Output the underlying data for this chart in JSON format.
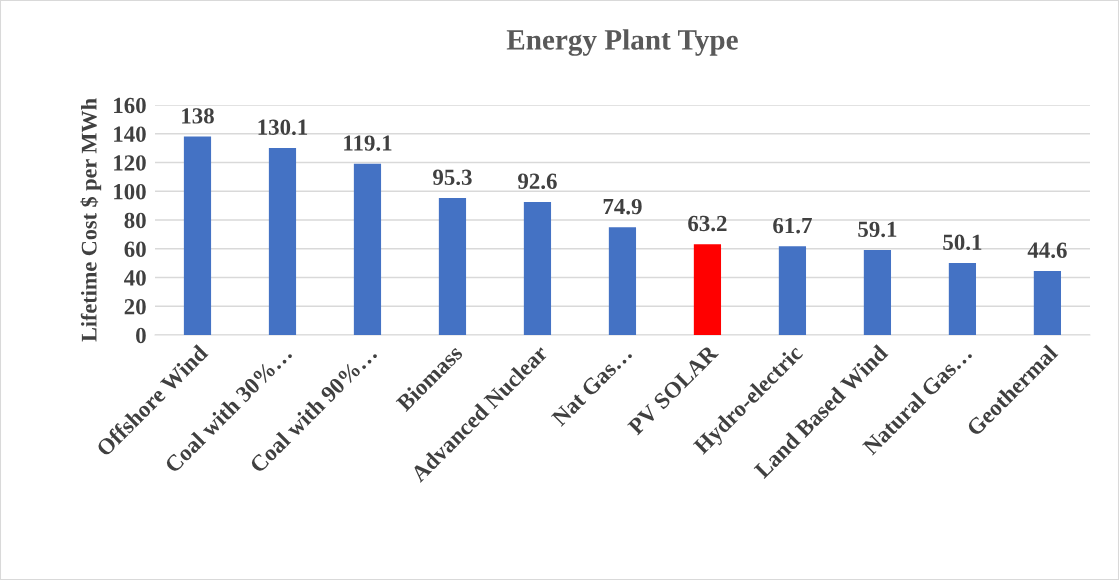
{
  "chart_data": {
    "type": "bar",
    "title": "Energy Plant Type",
    "ylabel": "Lifetime Cost $ per MWh",
    "categories": [
      "Offshore Wind",
      "Coal with 30%…",
      "Coal with 90%…",
      "Biomass",
      "Advanced Nuclear",
      "Nat Gas…",
      "PV SOLAR",
      "Hydro-electric",
      "Land Based Wind",
      "Natural Gas…",
      "Geothermal"
    ],
    "values": [
      138,
      130.1,
      119.1,
      95.3,
      92.6,
      74.9,
      63.2,
      61.7,
      59.1,
      50.1,
      44.6
    ],
    "colors": [
      "#4472c4",
      "#4472c4",
      "#4472c4",
      "#4472c4",
      "#4472c4",
      "#4472c4",
      "#ff0000",
      "#4472c4",
      "#4472c4",
      "#4472c4",
      "#4472c4"
    ],
    "ylim": [
      0,
      160
    ],
    "yticks": [
      0,
      20,
      40,
      60,
      80,
      100,
      120,
      140,
      160
    ],
    "grid": "y",
    "data_labels": true
  }
}
